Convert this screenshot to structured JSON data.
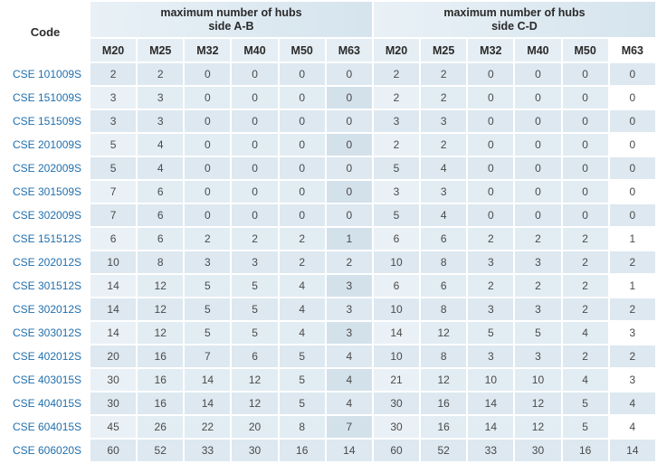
{
  "header": {
    "code_label": "Code",
    "group_ab": [
      "maximum number of hubs",
      "side A-B"
    ],
    "group_cd": [
      "maximum number of hubs",
      "side C-D"
    ],
    "sizes_ab": [
      "M20",
      "M25",
      "M32",
      "M40",
      "M50",
      "M63"
    ],
    "sizes_cd": [
      "M20",
      "M25",
      "M32",
      "M40",
      "M50",
      "M63"
    ]
  },
  "rows": [
    {
      "code": "CSE 101009S",
      "values": [
        "2",
        "2",
        "0",
        "0",
        "0",
        "0",
        "2",
        "2",
        "0",
        "0",
        "0",
        "0"
      ]
    },
    {
      "code": "CSE 151009S",
      "values": [
        "3",
        "3",
        "0",
        "0",
        "0",
        "0",
        "2",
        "2",
        "0",
        "0",
        "0",
        "0"
      ]
    },
    {
      "code": "CSE 151509S",
      "values": [
        "3",
        "3",
        "0",
        "0",
        "0",
        "0",
        "3",
        "3",
        "0",
        "0",
        "0",
        "0"
      ]
    },
    {
      "code": "CSE 201009S",
      "values": [
        "5",
        "4",
        "0",
        "0",
        "0",
        "0",
        "2",
        "2",
        "0",
        "0",
        "0",
        "0"
      ]
    },
    {
      "code": "CSE 202009S",
      "values": [
        "5",
        "4",
        "0",
        "0",
        "0",
        "0",
        "5",
        "4",
        "0",
        "0",
        "0",
        "0"
      ]
    },
    {
      "code": "CSE 301509S",
      "values": [
        "7",
        "6",
        "0",
        "0",
        "0",
        "0",
        "3",
        "3",
        "0",
        "0",
        "0",
        "0"
      ]
    },
    {
      "code": "CSE 302009S",
      "values": [
        "7",
        "6",
        "0",
        "0",
        "0",
        "0",
        "5",
        "4",
        "0",
        "0",
        "0",
        "0"
      ]
    },
    {
      "code": "CSE 151512S",
      "values": [
        "6",
        "6",
        "2",
        "2",
        "2",
        "1",
        "6",
        "6",
        "2",
        "2",
        "2",
        "1"
      ]
    },
    {
      "code": "CSE 202012S",
      "values": [
        "10",
        "8",
        "3",
        "3",
        "2",
        "2",
        "10",
        "8",
        "3",
        "3",
        "2",
        "2"
      ]
    },
    {
      "code": "CSE 301512S",
      "values": [
        "14",
        "12",
        "5",
        "5",
        "4",
        "3",
        "6",
        "6",
        "2",
        "2",
        "2",
        "1"
      ]
    },
    {
      "code": "CSE 302012S",
      "values": [
        "14",
        "12",
        "5",
        "5",
        "4",
        "3",
        "10",
        "8",
        "3",
        "3",
        "2",
        "2"
      ]
    },
    {
      "code": "CSE 303012S",
      "values": [
        "14",
        "12",
        "5",
        "5",
        "4",
        "3",
        "14",
        "12",
        "5",
        "5",
        "4",
        "3"
      ]
    },
    {
      "code": "CSE 402012S",
      "values": [
        "20",
        "16",
        "7",
        "6",
        "5",
        "4",
        "10",
        "8",
        "3",
        "3",
        "2",
        "2"
      ]
    },
    {
      "code": "CSE 403015S",
      "values": [
        "30",
        "16",
        "14",
        "12",
        "5",
        "4",
        "21",
        "12",
        "10",
        "10",
        "4",
        "3"
      ]
    },
    {
      "code": "CSE 404015S",
      "values": [
        "30",
        "16",
        "14",
        "12",
        "5",
        "4",
        "30",
        "16",
        "14",
        "12",
        "5",
        "4"
      ]
    },
    {
      "code": "CSE 604015S",
      "values": [
        "45",
        "26",
        "22",
        "20",
        "8",
        "7",
        "30",
        "16",
        "14",
        "12",
        "5",
        "4"
      ]
    },
    {
      "code": "CSE 606020S",
      "values": [
        "60",
        "52",
        "33",
        "30",
        "16",
        "14",
        "60",
        "52",
        "33",
        "30",
        "16",
        "14"
      ]
    }
  ]
}
